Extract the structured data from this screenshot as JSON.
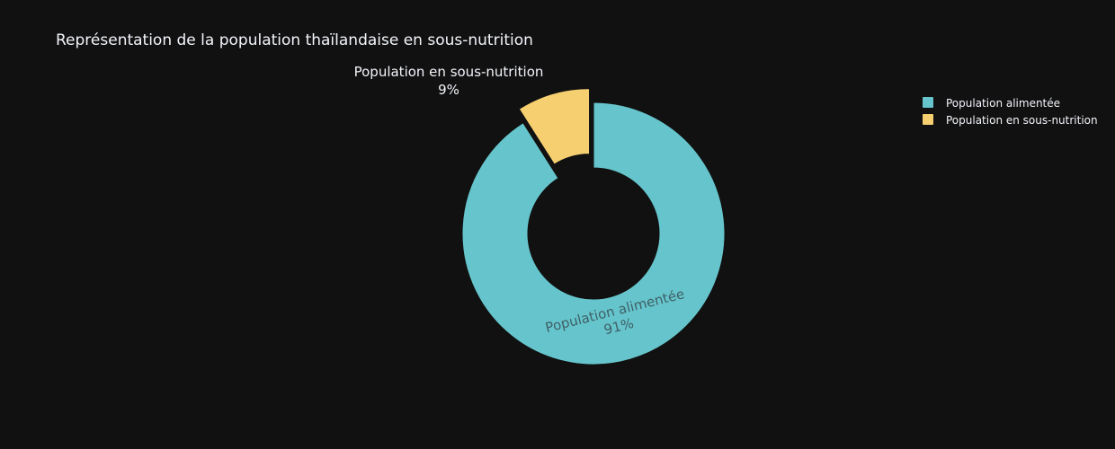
{
  "chart_data": {
    "type": "pie",
    "hole": 0.5,
    "title": "Représentation de la population thaïlandaise en sous-nutrition",
    "slices": [
      {
        "label": "Population alimentée",
        "value": 91,
        "percent_label": "91%",
        "color": "#66c5cc",
        "pulled": false,
        "label_position": "inside"
      },
      {
        "label": "Population en sous-nutrition",
        "value": 9,
        "percent_label": "9%",
        "color": "#f6cf71",
        "pulled": true,
        "label_position": "outside"
      }
    ],
    "legend": {
      "placement": "top-right",
      "entries": [
        "Population alimentée",
        "Population en sous-nutrition"
      ]
    }
  },
  "colors": {
    "background": "#111111",
    "text": "#f2f5fa",
    "inside_text": "#3f5f66"
  }
}
